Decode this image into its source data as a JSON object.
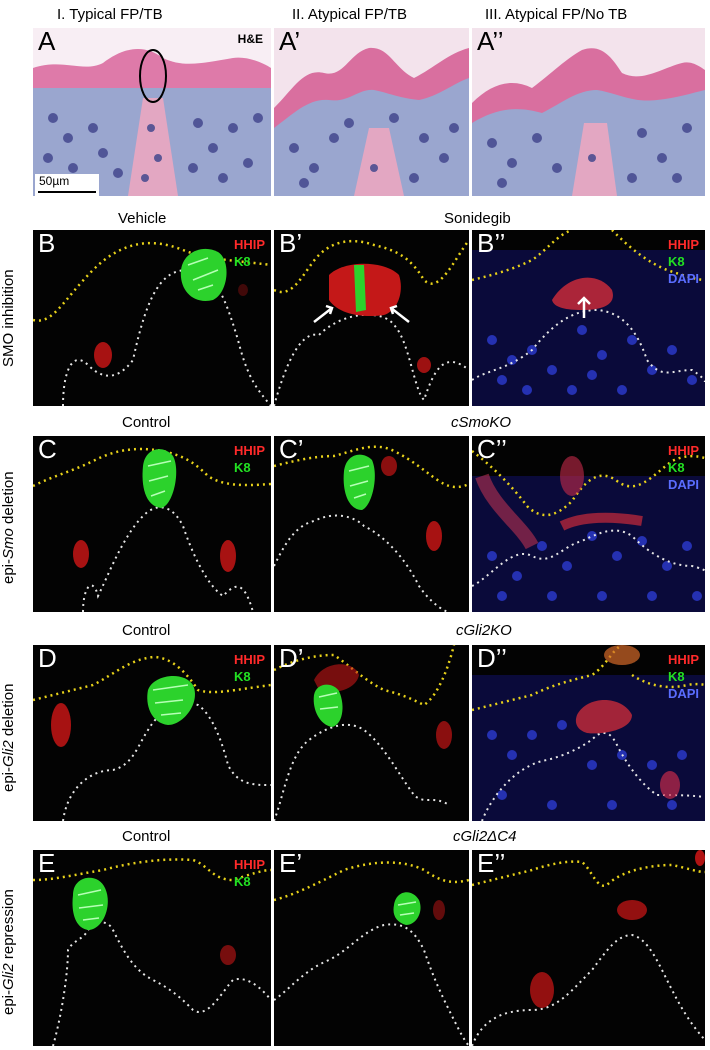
{
  "columns": [
    {
      "id": "I",
      "text": "I. Typical FP/TB"
    },
    {
      "id": "II",
      "text": "II. Atypical FP/TB"
    },
    {
      "id": "III",
      "text": "III. Atypical FP/No TB"
    }
  ],
  "rows": {
    "A": {
      "labels": [
        "A",
        "A’",
        "A’’"
      ],
      "stain_tag": "H&E",
      "scale_bar": "50µm"
    },
    "B": {
      "row_label": "SMO inhibition",
      "subtitle_left": "Vehicle",
      "subtitle_right": "Sonidegib",
      "labels": [
        "B",
        "B’",
        "B’’"
      ]
    },
    "C": {
      "row_label_prefix": "epi-",
      "row_label_gene": "Smo",
      "row_label_suffix": " deletion",
      "subtitle_left": "Control",
      "subtitle_right": "cSmoKO",
      "labels": [
        "C",
        "C’",
        "C’’"
      ]
    },
    "D": {
      "row_label_prefix": "epi-",
      "row_label_gene": "Gli2",
      "row_label_suffix": " deletion",
      "subtitle_left": "Control",
      "subtitle_right": "cGli2KO",
      "labels": [
        "D",
        "D’",
        "D’’"
      ]
    },
    "E": {
      "row_label_prefix": "epi-",
      "row_label_gene": "Gli2",
      "row_label_suffix": " repression",
      "subtitle_left": "Control",
      "subtitle_right": "cGli2ΔC4",
      "labels": [
        "E",
        "E’",
        "E’’"
      ]
    }
  },
  "stains": {
    "hhip": "HHIP",
    "k8": "K8",
    "dapi": "DAPI"
  },
  "colors": {
    "hhip": "#ff2a2a",
    "k8": "#22e022",
    "dapi": "#5a6dff",
    "epithelium_outline": "#e8d21a",
    "basement_outline": "#e6e6e6"
  }
}
